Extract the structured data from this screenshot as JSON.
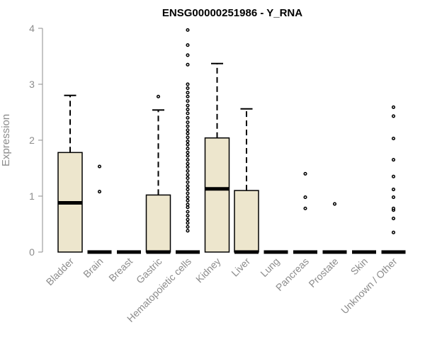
{
  "chart_data": {
    "type": "boxplot",
    "title": "ENSG00000251986 - Y_RNA",
    "xlabel": "",
    "ylabel": "Expression",
    "ylim": [
      0,
      4
    ],
    "yticks": [
      0,
      1,
      2,
      3,
      4
    ],
    "grid": false,
    "legend": "none",
    "box_fill": "#ede6cd",
    "categories": [
      "Bladder",
      "Brain",
      "Breast",
      "Gastric",
      "Hematopoietic cells",
      "Kidney",
      "Liver",
      "Lung",
      "Pancreas",
      "Prostate",
      "Skin",
      "Unknown / Other"
    ],
    "boxes": [
      {
        "min": 0,
        "q1": 0,
        "median": 0.88,
        "q3": 1.78,
        "max": 2.8,
        "outliers": []
      },
      {
        "min": 0,
        "q1": 0,
        "median": 0,
        "q3": 0,
        "max": 0,
        "outliers": [
          1.08,
          1.53
        ]
      },
      {
        "min": 0,
        "q1": 0,
        "median": 0,
        "q3": 0,
        "max": 0,
        "outliers": []
      },
      {
        "min": 0,
        "q1": 0,
        "median": 0,
        "q3": 1.02,
        "max": 2.54,
        "outliers": [
          2.78
        ]
      },
      {
        "min": 0,
        "q1": 0,
        "median": 0,
        "q3": 0,
        "max": 0,
        "outliers": [
          0.38,
          0.45,
          0.52,
          0.58,
          0.65,
          0.72,
          0.8,
          0.85,
          0.92,
          0.98,
          1.05,
          1.12,
          1.18,
          1.25,
          1.32,
          1.38,
          1.45,
          1.52,
          1.58,
          1.65,
          1.72,
          1.78,
          1.85,
          1.92,
          1.98,
          2.05,
          2.12,
          2.18,
          2.25,
          2.32,
          2.4,
          2.48,
          2.55,
          2.62,
          2.7,
          2.78,
          2.85,
          2.93,
          3.0,
          3.35,
          3.52,
          3.7,
          3.97
        ]
      },
      {
        "min": 0,
        "q1": 0,
        "median": 1.13,
        "q3": 2.04,
        "max": 3.37,
        "outliers": []
      },
      {
        "min": 0,
        "q1": 0,
        "median": 0,
        "q3": 1.1,
        "max": 2.56,
        "outliers": []
      },
      {
        "min": 0,
        "q1": 0,
        "median": 0,
        "q3": 0,
        "max": 0,
        "outliers": []
      },
      {
        "min": 0,
        "q1": 0,
        "median": 0,
        "q3": 0,
        "max": 0,
        "outliers": [
          0.78,
          0.98,
          1.4
        ]
      },
      {
        "min": 0,
        "q1": 0,
        "median": 0,
        "q3": 0,
        "max": 0,
        "outliers": [
          0.86
        ]
      },
      {
        "min": 0,
        "q1": 0,
        "median": 0,
        "q3": 0,
        "max": 0,
        "outliers": []
      },
      {
        "min": 0,
        "q1": 0,
        "median": 0,
        "q3": 0,
        "max": 0,
        "outliers": [
          0.35,
          0.6,
          0.75,
          0.78,
          0.98,
          1.12,
          1.35,
          1.65,
          2.03,
          2.43,
          2.59
        ]
      }
    ]
  }
}
